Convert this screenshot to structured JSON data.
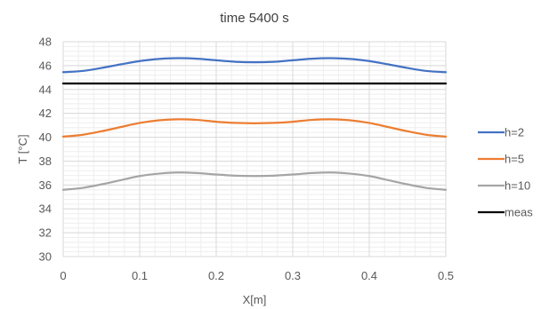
{
  "chart_data": {
    "type": "line",
    "title": "time 5400 s",
    "xlabel": "X[m]",
    "ylabel": "T [°C]",
    "xlim": [
      0,
      0.5
    ],
    "ylim": [
      30,
      48
    ],
    "x_ticks": [
      "0",
      "0.1",
      "0.2",
      "0.3",
      "0.4",
      "0.5"
    ],
    "y_ticks": [
      "30",
      "32",
      "34",
      "36",
      "38",
      "40",
      "42",
      "44",
      "46",
      "48"
    ],
    "grid": "major and minor",
    "legend_position": "right",
    "x": [
      0,
      0.025,
      0.05,
      0.075,
      0.1,
      0.125,
      0.15,
      0.175,
      0.2,
      0.225,
      0.25,
      0.275,
      0.3,
      0.325,
      0.35,
      0.375,
      0.4,
      0.425,
      0.45,
      0.475,
      0.5
    ],
    "series": [
      {
        "name": "h=2",
        "color": "#4472C4",
        "values": [
          45.45,
          45.55,
          45.8,
          46.1,
          46.38,
          46.56,
          46.62,
          46.58,
          46.45,
          46.32,
          46.28,
          46.32,
          46.45,
          46.58,
          46.62,
          46.56,
          46.38,
          46.1,
          45.8,
          45.55,
          45.45
        ]
      },
      {
        "name": "h=5",
        "color": "#ED7D31",
        "values": [
          40.05,
          40.2,
          40.5,
          40.85,
          41.2,
          41.42,
          41.5,
          41.45,
          41.3,
          41.2,
          41.17,
          41.2,
          41.3,
          41.45,
          41.5,
          41.42,
          41.2,
          40.85,
          40.5,
          40.2,
          40.05
        ]
      },
      {
        "name": "h=10",
        "color": "#A5A5A5",
        "values": [
          35.6,
          35.75,
          36.05,
          36.4,
          36.75,
          36.95,
          37.05,
          37.0,
          36.88,
          36.78,
          36.75,
          36.78,
          36.88,
          37.0,
          37.05,
          36.95,
          36.75,
          36.4,
          36.05,
          35.75,
          35.6
        ]
      },
      {
        "name": "meas",
        "color": "#000000",
        "values": [
          44.5,
          44.5,
          44.5,
          44.5,
          44.5,
          44.5,
          44.5,
          44.5,
          44.5,
          44.5,
          44.5,
          44.5,
          44.5,
          44.5,
          44.5,
          44.5,
          44.5,
          44.5,
          44.5,
          44.5,
          44.5
        ]
      }
    ]
  }
}
